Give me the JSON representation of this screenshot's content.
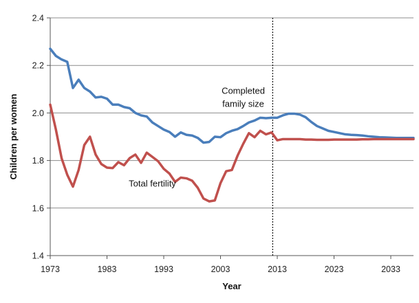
{
  "chart_data": {
    "type": "line",
    "xlabel": "Year",
    "ylabel": "Children per women",
    "xlim": [
      1973,
      2037
    ],
    "ylim": [
      1.4,
      2.4
    ],
    "grid": true,
    "x_ticks": [
      1973,
      1983,
      1993,
      2003,
      2013,
      2023,
      2033
    ],
    "y_ticks": [
      1.4,
      1.6,
      1.8,
      2.0,
      2.2,
      2.4
    ],
    "y_tick_labels": [
      "1.4",
      "1.6",
      "1.8",
      "2.0",
      "2.2",
      "2.4"
    ],
    "vertical_marker": {
      "x": 2012.2,
      "style": "dashed"
    },
    "annotations": [
      {
        "lines": [
          "Completed",
          "family size"
        ],
        "x": 2007,
        "y": 2.08
      },
      {
        "lines": [
          "Total fertility"
        ],
        "x": 1991,
        "y": 1.69
      }
    ],
    "series": [
      {
        "label": "Completed family size",
        "color": "#4a7ebb",
        "x": [
          1973,
          1974,
          1975,
          1976,
          1977,
          1978,
          1979,
          1980,
          1981,
          1982,
          1983,
          1984,
          1985,
          1986,
          1987,
          1988,
          1989,
          1990,
          1991,
          1992,
          1993,
          1994,
          1995,
          1996,
          1997,
          1998,
          1999,
          2000,
          2001,
          2002,
          2003,
          2004,
          2005,
          2006,
          2007,
          2008,
          2009,
          2010,
          2011,
          2012,
          2013,
          2014,
          2015,
          2016,
          2017,
          2018,
          2019,
          2020,
          2021,
          2022,
          2023,
          2024,
          2025,
          2026,
          2027,
          2028,
          2029,
          2030,
          2031,
          2032,
          2033,
          2034,
          2035,
          2036,
          2037
        ],
        "y": [
          2.27,
          2.24,
          2.225,
          2.215,
          2.105,
          2.14,
          2.105,
          2.09,
          2.065,
          2.068,
          2.06,
          2.035,
          2.035,
          2.025,
          2.02,
          2.0,
          1.99,
          1.985,
          1.96,
          1.945,
          1.93,
          1.92,
          1.9,
          1.918,
          1.908,
          1.905,
          1.895,
          1.875,
          1.878,
          1.9,
          1.898,
          1.915,
          1.925,
          1.932,
          1.945,
          1.96,
          1.968,
          1.98,
          1.978,
          1.98,
          1.98,
          1.99,
          1.997,
          1.997,
          1.993,
          1.982,
          1.962,
          1.945,
          1.935,
          1.925,
          1.92,
          1.915,
          1.91,
          1.908,
          1.907,
          1.905,
          1.902,
          1.9,
          1.898,
          1.897,
          1.896,
          1.895,
          1.895,
          1.895,
          1.895
        ]
      },
      {
        "label": "Total fertility",
        "color": "#c0504d",
        "x": [
          1973,
          1974,
          1975,
          1976,
          1977,
          1978,
          1979,
          1980,
          1981,
          1982,
          1983,
          1984,
          1985,
          1986,
          1987,
          1988,
          1989,
          1990,
          1991,
          1992,
          1993,
          1994,
          1995,
          1996,
          1997,
          1998,
          1999,
          2000,
          2001,
          2002,
          2003,
          2004,
          2005,
          2006,
          2007,
          2008,
          2009,
          2010,
          2011,
          2012,
          2013,
          2014,
          2015,
          2016,
          2017,
          2018,
          2019,
          2020,
          2021,
          2022,
          2023,
          2024,
          2025,
          2026,
          2027,
          2028,
          2029,
          2030,
          2031,
          2032,
          2033,
          2034,
          2035,
          2036,
          2037
        ],
        "y": [
          2.035,
          1.93,
          1.81,
          1.74,
          1.69,
          1.76,
          1.865,
          1.9,
          1.825,
          1.785,
          1.77,
          1.768,
          1.793,
          1.78,
          1.81,
          1.825,
          1.79,
          1.833,
          1.815,
          1.797,
          1.765,
          1.745,
          1.71,
          1.728,
          1.725,
          1.715,
          1.685,
          1.64,
          1.628,
          1.632,
          1.705,
          1.755,
          1.76,
          1.82,
          1.87,
          1.915,
          1.898,
          1.925,
          1.91,
          1.918,
          1.885,
          1.89,
          1.89,
          1.89,
          1.89,
          1.888,
          1.888,
          1.887,
          1.887,
          1.887,
          1.888,
          1.888,
          1.888,
          1.888,
          1.888,
          1.889,
          1.889,
          1.89,
          1.89,
          1.89,
          1.89,
          1.89,
          1.89,
          1.89,
          1.89
        ]
      }
    ]
  }
}
